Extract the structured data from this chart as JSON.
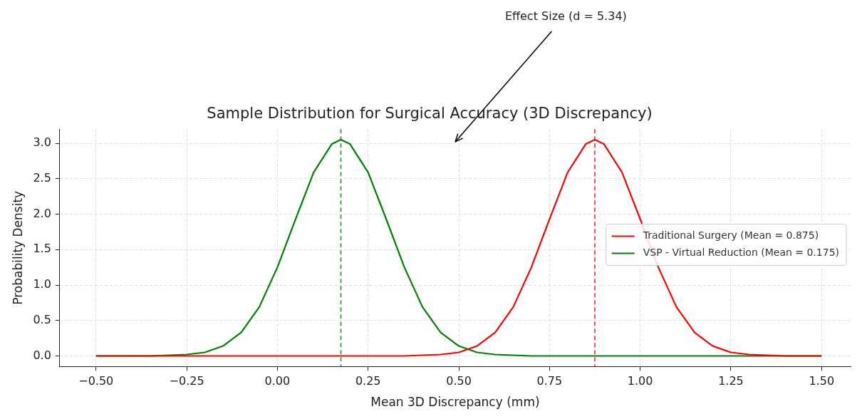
{
  "chart_data": {
    "type": "line",
    "title": "Sample Distribution for Surgical Accuracy (3D Discrepancy)",
    "xlabel": "Mean 3D Discrepancy (mm)",
    "ylabel": "Probability Density",
    "series": [
      {
        "name": "Traditional Surgery (Mean = 0.875)",
        "color": "#ff0000",
        "x": [
          -0.5,
          0.35,
          0.45,
          0.5,
          0.55,
          0.6,
          0.65,
          0.7,
          0.75,
          0.8,
          0.85,
          0.875,
          0.9,
          0.95,
          1.0,
          1.05,
          1.1,
          1.15,
          1.2,
          1.25,
          1.3,
          1.4,
          1.5
        ],
        "values": [
          0,
          0,
          0.02,
          0.05,
          0.14,
          0.33,
          0.69,
          1.25,
          1.93,
          2.59,
          2.99,
          3.05,
          2.99,
          2.59,
          1.93,
          1.25,
          0.69,
          0.33,
          0.14,
          0.05,
          0.02,
          0,
          0
        ]
      },
      {
        "name": "VSP - Virtual Reduction (Mean = 0.175)",
        "color": "#008000",
        "x": [
          -0.5,
          -0.35,
          -0.25,
          -0.2,
          -0.15,
          -0.1,
          -0.05,
          0,
          0.05,
          0.1,
          0.15,
          0.175,
          0.2,
          0.25,
          0.3,
          0.35,
          0.4,
          0.45,
          0.5,
          0.55,
          0.6,
          0.7,
          1.5
        ],
        "values": [
          0,
          0,
          0.02,
          0.05,
          0.14,
          0.33,
          0.69,
          1.25,
          1.93,
          2.59,
          2.99,
          3.05,
          2.99,
          2.59,
          1.93,
          1.25,
          0.69,
          0.33,
          0.14,
          0.05,
          0.02,
          0,
          0
        ]
      }
    ],
    "ref_lines": [
      {
        "axis": "x",
        "value": 0.875,
        "color": "#ff0000",
        "line_style": "dashed"
      },
      {
        "axis": "x",
        "value": 0.175,
        "color": "#008000",
        "line_style": "dashed"
      }
    ],
    "annotations": [
      "Effect Size (d = 5.34)"
    ],
    "xlim": [
      -0.6,
      1.58
    ],
    "ylim": [
      -0.15,
      3.2
    ],
    "xticks": [
      {
        "value": -0.5,
        "label": "−0.50"
      },
      {
        "value": -0.25,
        "label": "−0.25"
      },
      {
        "value": 0,
        "label": "0.00"
      },
      {
        "value": 0.25,
        "label": "0.25"
      },
      {
        "value": 0.5,
        "label": "0.50"
      },
      {
        "value": 0.75,
        "label": "0.75"
      },
      {
        "value": 1.0,
        "label": "1.00"
      },
      {
        "value": 1.25,
        "label": "1.25"
      },
      {
        "value": 1.5,
        "label": "1.50"
      }
    ],
    "yticks": [
      {
        "value": 0,
        "label": "0.0"
      },
      {
        "value": 0.5,
        "label": "0.5"
      },
      {
        "value": 1.0,
        "label": "1.0"
      },
      {
        "value": 1.5,
        "label": "1.5"
      },
      {
        "value": 2.0,
        "label": "2.0"
      },
      {
        "value": 2.5,
        "label": "2.5"
      },
      {
        "value": 3.0,
        "label": "3.0"
      }
    ],
    "grid": true,
    "legend": "right",
    "line_style": "solid",
    "marker": "none"
  }
}
